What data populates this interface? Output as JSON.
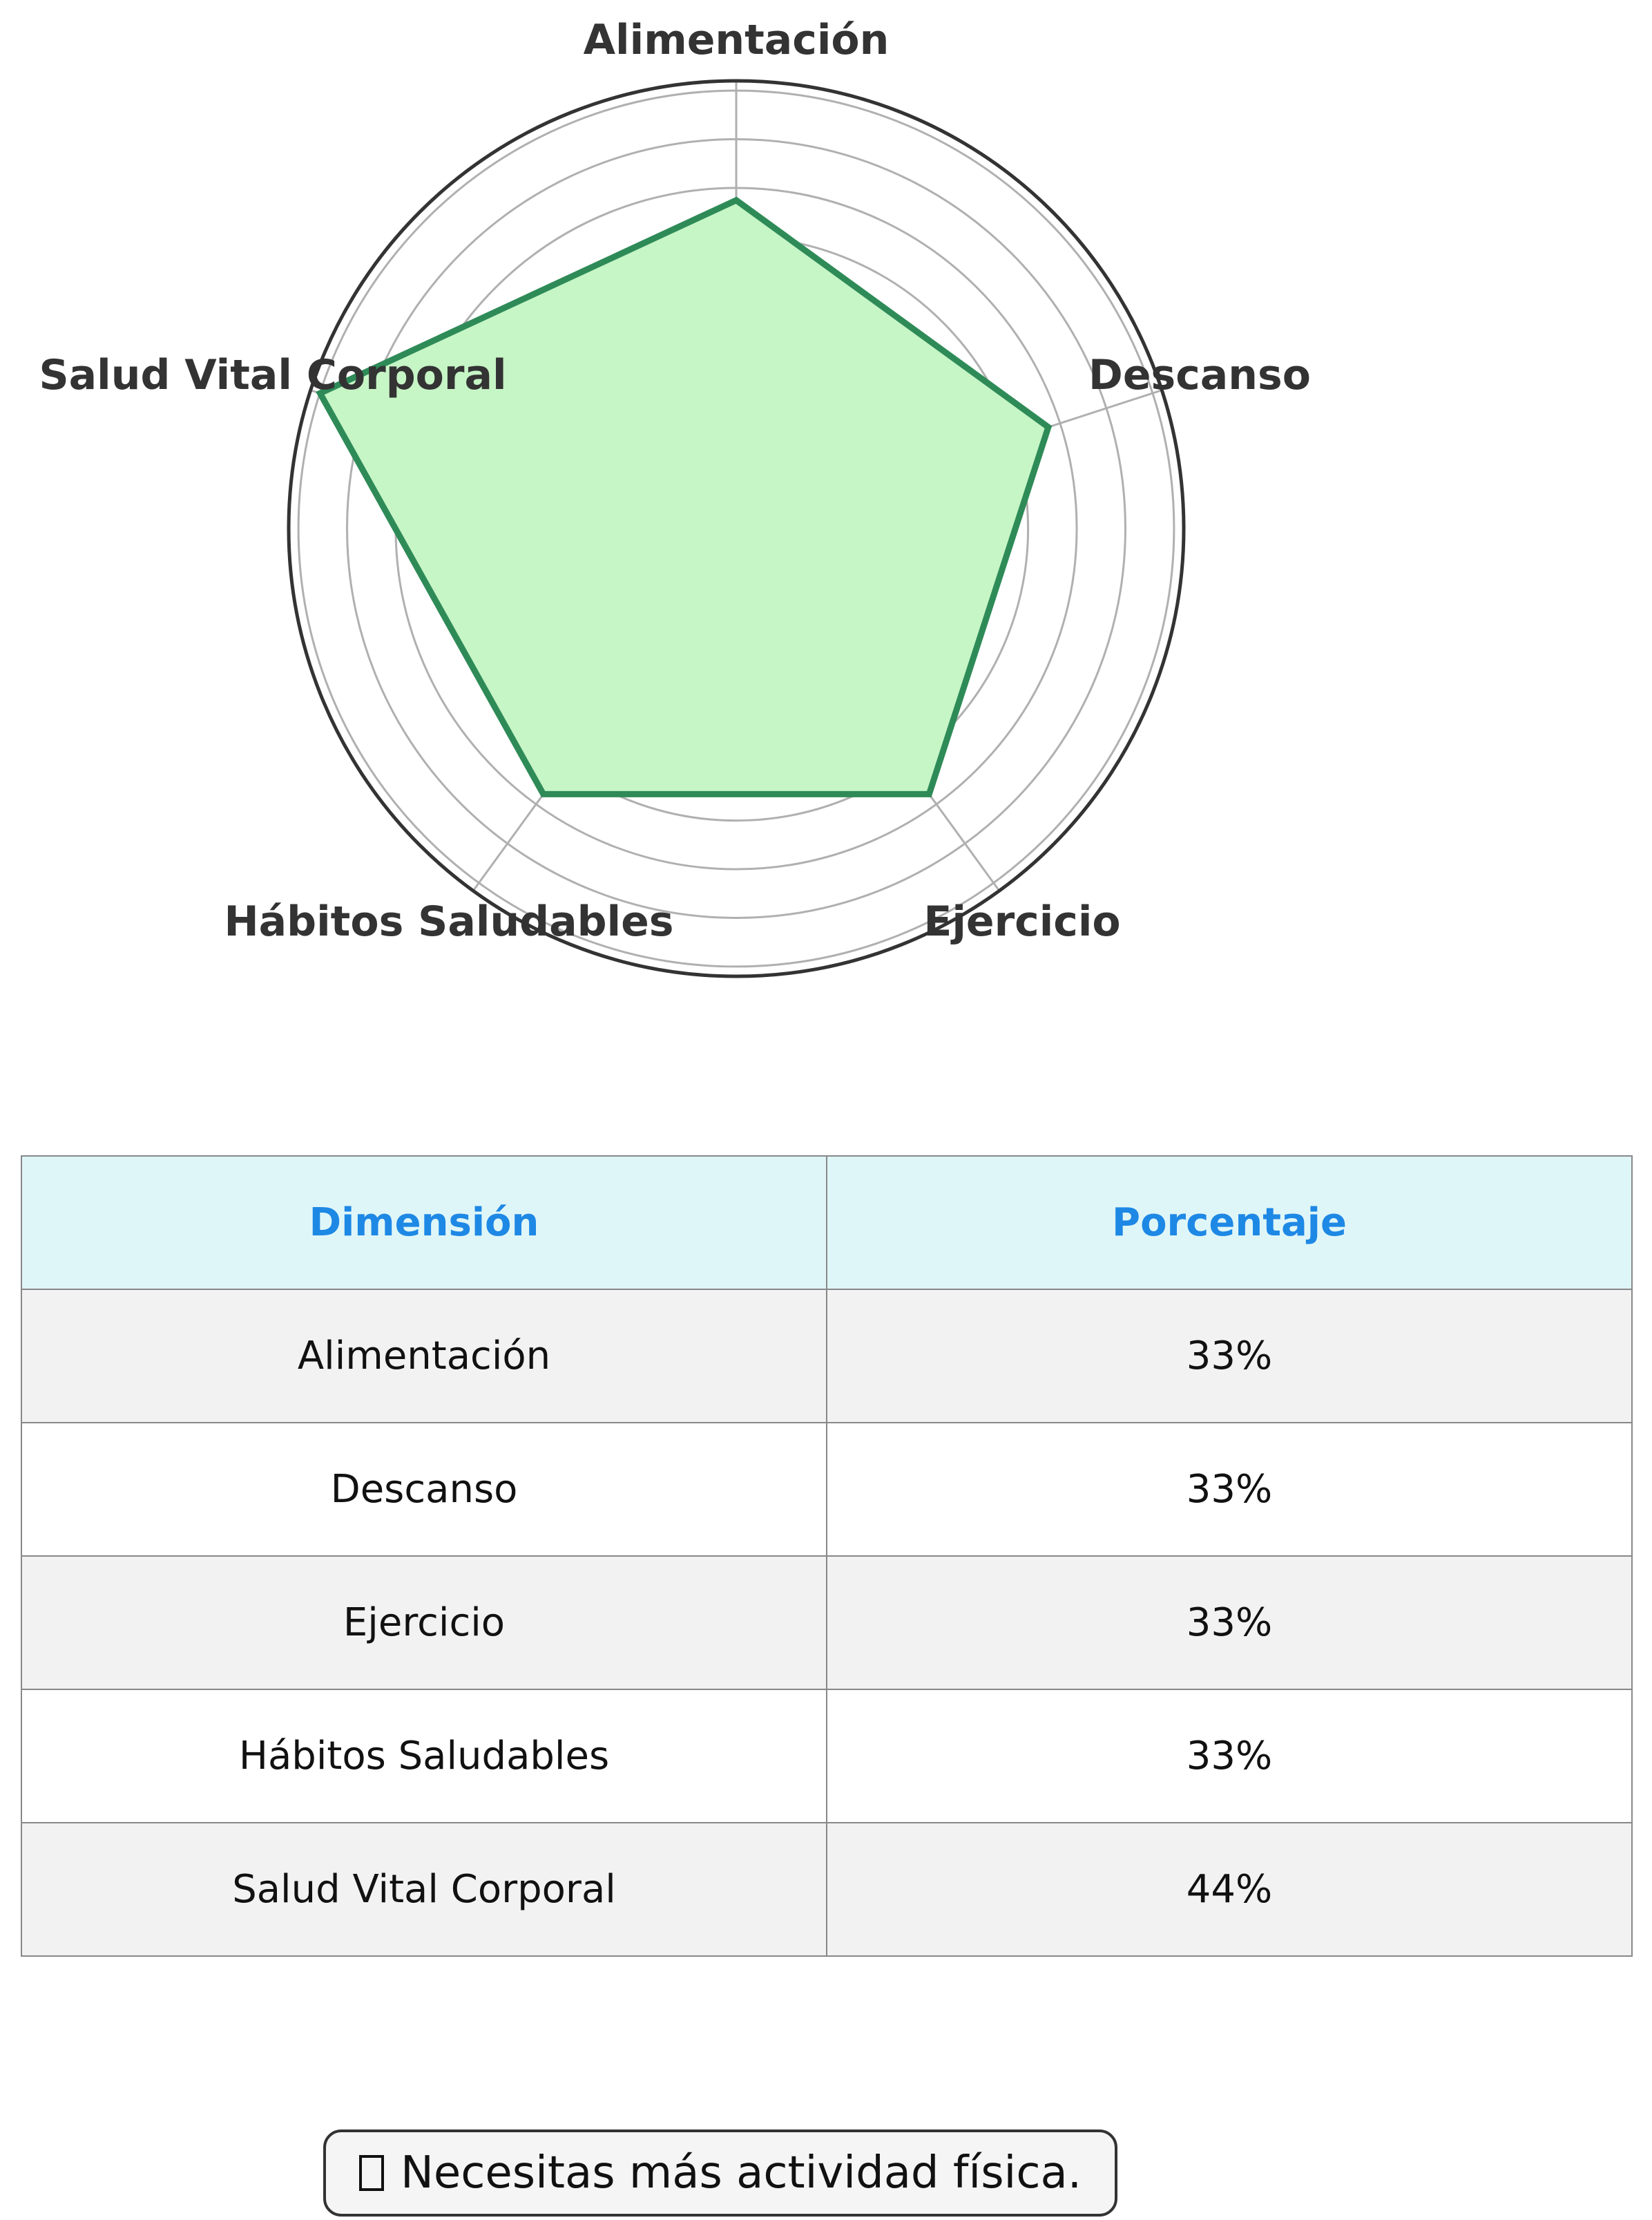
{
  "chart_data": {
    "type": "radar",
    "categories": [
      "Alimentación",
      "Descanso",
      "Ejercicio",
      "Hábitos Saludables",
      "Salud Vital Corporal"
    ],
    "values": [
      33,
      33,
      33,
      33,
      44
    ],
    "rmax": 45,
    "rings": 9,
    "grid": true
  },
  "colors": {
    "series_line": "#2e8b57",
    "series_fill": "#c6f5c6",
    "grid": "#b0b0b0",
    "outline": "#333333",
    "label": "#333333",
    "header_bg": "#dff6f8",
    "header_text": "#1e88e5"
  },
  "table": {
    "headers": [
      "Dimensión",
      "Porcentaje"
    ],
    "rows": [
      [
        "Alimentación",
        "33%"
      ],
      [
        "Descanso",
        "33%"
      ],
      [
        "Ejercicio",
        "33%"
      ],
      [
        "Hábitos Saludables",
        "33%"
      ],
      [
        "Salud Vital Corporal",
        "44%"
      ]
    ]
  },
  "advice": {
    "icon": "missing-glyph-icon",
    "text": "Necesitas más actividad física."
  }
}
